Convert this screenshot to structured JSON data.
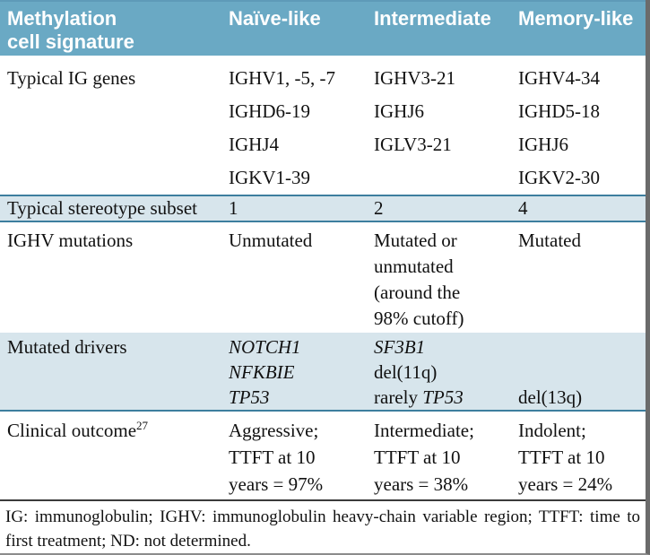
{
  "table": {
    "header": {
      "col1_line1": "Methylation",
      "col1_line2": "cell signature",
      "col2": "Naïve-like",
      "col3": "Intermediate",
      "col4": "Memory-like"
    },
    "rows": {
      "ig_genes": {
        "label": "Typical IG genes",
        "naive": [
          "IGHV1, -5, -7",
          "IGHD6-19",
          "IGHJ4",
          "IGKV1-39"
        ],
        "intermediate": [
          "IGHV3-21",
          "IGHJ6",
          "IGLV3-21"
        ],
        "memory": [
          "IGHV4-34",
          "IGHD5-18",
          "IGHJ6",
          "IGKV2-30"
        ]
      },
      "stereotype": {
        "label": "Typical stereotype subset",
        "naive": "1",
        "intermediate": "2",
        "memory": "4"
      },
      "ighv_mutations": {
        "label": "IGHV mutations",
        "naive": "Unmutated",
        "intermediate": [
          "Mutated or",
          "unmutated",
          "(around the",
          "98% cutoff)"
        ],
        "memory": "Mutated"
      },
      "mutated_drivers": {
        "label": "Mutated drivers",
        "naive": [
          "NOTCH1",
          "NFKBIE",
          "TP53"
        ],
        "intermediate": {
          "line1_gene": "SF3B1",
          "line2": "del(11q)",
          "line3_prefix": "rarely ",
          "line3_gene": "TP53"
        },
        "memory": "del(13q)"
      },
      "clinical_outcome": {
        "label": "Clinical outcome",
        "sup": "27",
        "naive": [
          "Aggressive;",
          "TTFT at 10",
          "years = 97%"
        ],
        "intermediate": [
          "Intermediate;",
          "TTFT at 10",
          "years = 38%"
        ],
        "memory": [
          "Indolent;",
          "TTFT at 10",
          "years = 24%"
        ]
      }
    },
    "footnote": "IG: immunoglobulin; IGHV: immunoglobulin heavy-chain variable region; TTFT: time to first treatment; ND: not determined.",
    "colors": {
      "header_bg": "#6aa9c4",
      "highlight_bg": "#d7e5ec",
      "teal_line": "#3d7e9e",
      "right_border": "#6b6b6b"
    }
  }
}
